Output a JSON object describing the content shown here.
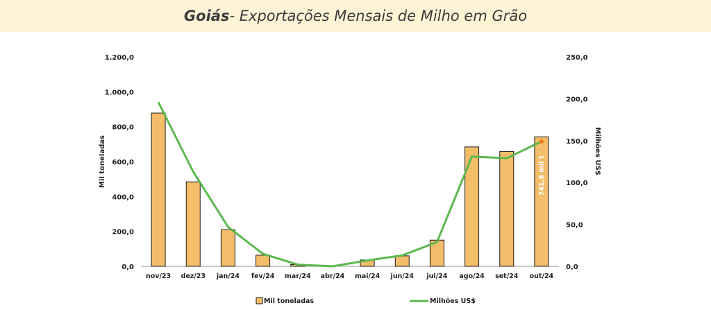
{
  "header": {
    "title_bold": "Goiás",
    "title_rest": " - Exportações Mensais de Milho em Grão"
  },
  "chart_data": {
    "type": "bar+line",
    "categories": [
      "nov/23",
      "dez/23",
      "jan/24",
      "fev/24",
      "mar/24",
      "abr/24",
      "mai/24",
      "jun/24",
      "jul/24",
      "ago/24",
      "set/24",
      "out/24"
    ],
    "series": [
      {
        "name": "Mil toneladas",
        "kind": "bar",
        "axis": "left",
        "color": "#f3bd6a",
        "values": [
          878,
          484,
          210,
          64,
          10,
          0,
          36,
          60,
          150,
          684,
          658,
          741.8
        ]
      },
      {
        "name": "Milhões US$",
        "kind": "line",
        "axis": "right",
        "color": "#5cb84f",
        "values": [
          196,
          113,
          47,
          15,
          2,
          0,
          7,
          13,
          29,
          131,
          129,
          149
        ]
      }
    ],
    "ylabel": "Mil toneladas",
    "y2label": "Milhões US$",
    "ylim": [
      0,
      1200
    ],
    "y2lim": [
      0,
      250
    ],
    "yticks": [
      "0,0",
      "200,0",
      "400,0",
      "600,0",
      "800,0",
      "1.000,0",
      "1.200,0"
    ],
    "y2ticks": [
      "0,0",
      "50,0",
      "100,0",
      "150,0",
      "200,0",
      "250,0"
    ],
    "annotation": "741,8 mil t",
    "legend_position": "bottom",
    "grid": false,
    "marker_color": "#f07a1c"
  }
}
